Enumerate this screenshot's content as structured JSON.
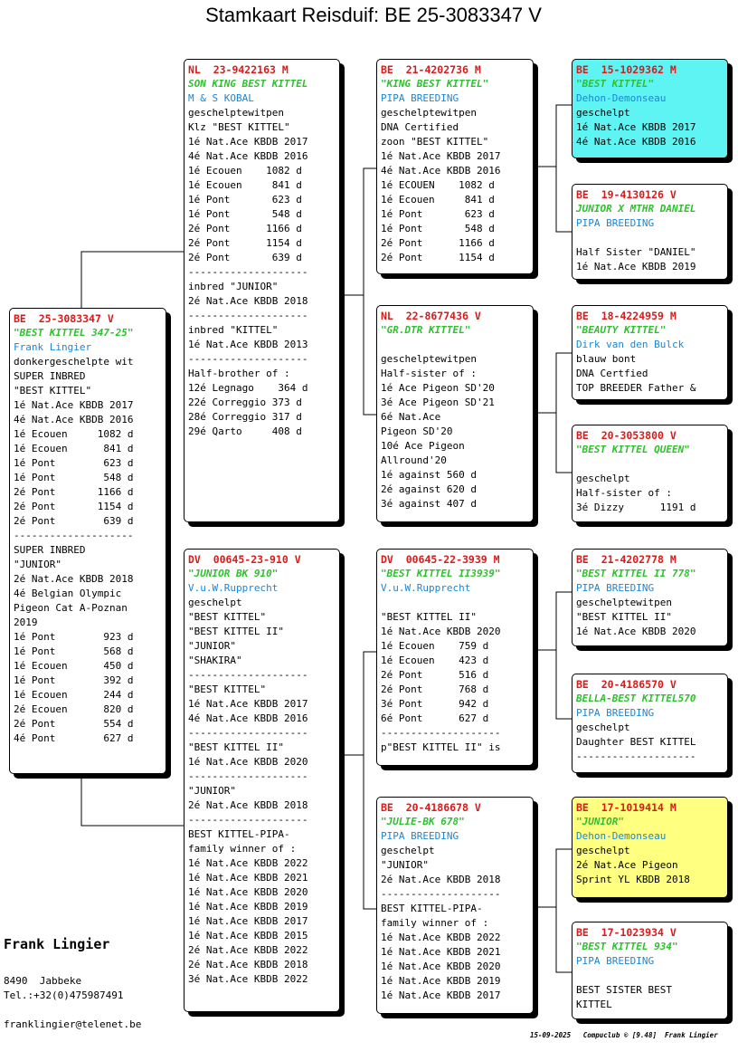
{
  "title": "Stamkaart Reisduif: BE  25-3083347 V",
  "owner": {
    "name": "Frank Lingier",
    "address": "8490  Jabbeke",
    "phone": "Tel.:+32(0)475987491",
    "email": "franklingier@telenet.be"
  },
  "footer": "15-09-2025   Compuclub © [9.48]  Frank Lingier",
  "cards": {
    "subject": {
      "ring": "BE  25-3083347 V",
      "name": "\"BEST KITTEL 347-25\"",
      "owner": "Frank Lingier",
      "lines": [
        "donkergeschelpte wit",
        "SUPER INBRED",
        "\"BEST KITTEL\"",
        "1é Nat.Ace KBDB 2017",
        "4é Nat.Ace KBDB 2016",
        "1é Ecouen     1082 d",
        "1é Ecouen      841 d",
        "1é Pont        623 d",
        "1é Pont        548 d",
        "2é Pont       1166 d",
        "2é Pont       1154 d",
        "2é Pont        639 d",
        "--------------------",
        "SUPER INBRED",
        "\"JUNIOR\"",
        "2é Nat.Ace KBDB 2018",
        "4é Belgian Olympic",
        "Pigeon Cat A-Poznan",
        "2019",
        "1é Pont        923 d",
        "1é Pont        568 d",
        "1é Ecouen      450 d",
        "1é Pont        392 d",
        "1é Ecouen      244 d",
        "2é Ecouen      820 d",
        "2é Pont        554 d",
        "4é Pont        627 d"
      ]
    },
    "father": {
      "ring": "NL  23-9422163 M",
      "name": "SON KING BEST KITTEL",
      "owner": "M & S KOBAL",
      "lines": [
        "geschelptewitpen",
        "Klz \"BEST KITTEL\"",
        "1é Nat.Ace KBDB 2017",
        "4é Nat.Ace KBDB 2016",
        "1é Ecouen    1082 d",
        "1é Ecouen     841 d",
        "1é Pont       623 d",
        "1é Pont       548 d",
        "2é Pont      1166 d",
        "2é Pont      1154 d",
        "2é Pont       639 d",
        "--------------------",
        "inbred \"JUNIOR\"",
        "2é Nat.Ace KBDB 2018",
        "--------------------",
        "inbred \"KITTEL\"",
        "1é Nat.Ace KBDB 2013",
        "--------------------",
        "Half-brother of :",
        "12é Legnago    364 d",
        "22é Correggio 373 d",
        "28é Correggio 317 d",
        "29é Qarto     408 d"
      ]
    },
    "mother": {
      "ring": "DV  00645-23-910 V",
      "name": "\"JUNIOR BK 910\"",
      "owner": "V.u.W.Rupprecht",
      "lines": [
        "geschelpt",
        "\"BEST KITTEL\"",
        "\"BEST KITTEL II\"",
        "\"JUNIOR\"",
        "\"SHAKIRA\"",
        "--------------------",
        "\"BEST KITTEL\"",
        "1é Nat.Ace KBDB 2017",
        "4é Nat.Ace KBDB 2016",
        "--------------------",
        "\"BEST KITTEL II\"",
        "1é Nat.Ace KBDB 2020",
        "--------------------",
        "\"JUNIOR\"",
        "2é Nat.Ace KBDB 2018",
        "--------------------",
        "BEST KITTEL-PIPA-",
        "family winner of :",
        "1é Nat.Ace KBDB 2022",
        "1é Nat.Ace KBDB 2021",
        "1é Nat.Ace KBDB 2020",
        "1é Nat.Ace KBDB 2019",
        "1é Nat.Ace KBDB 2017",
        "1é Nat.Ace KBDB 2015",
        "2é Nat.Ace KBDB 2022",
        "2é Nat.Ace KBDB 2018",
        "3é Nat.Ace KBDB 2022"
      ]
    },
    "ff": {
      "ring": "BE  21-4202736 M",
      "name": "\"KING BEST KITTEL\"",
      "owner": "PIPA BREEDING",
      "lines": [
        "geschelptewitpen",
        "DNA Certified",
        "zoon \"BEST KITTEL\"",
        "1é Nat.Ace KBDB 2017",
        "4é Nat.Ace KBDB 2016",
        "1é ECOUEN    1082 d",
        "1é Ecouen     841 d",
        "1é Pont       623 d",
        "1é Pont       548 d",
        "2é Pont      1166 d",
        "2é Pont      1154 d"
      ]
    },
    "fm": {
      "ring": "NL  22-8677436 V",
      "name": "\"GR.DTR KITTEL\"",
      "owner": "",
      "lines": [
        "geschelptewitpen",
        "Half-sister of :",
        "1é Ace Pigeon SD'20",
        "3é Ace Pigeon SD'21",
        "6é Nat.Ace",
        "Pigeon SD'20",
        "10é Ace Pigeon",
        "Allround'20",
        "1é against 560 d",
        "2é against 620 d",
        "3é against 407 d"
      ]
    },
    "mf": {
      "ring": "DV  00645-22-3939 M",
      "name": "\"BEST KITTEL II3939\"",
      "owner": "V.u.W.Rupprecht",
      "lines": [
        "",
        "\"BEST KITTEL II\"",
        "1é Nat.Ace KBDB 2020",
        "1é Ecouen    759 d",
        "1é Ecouen    423 d",
        "2é Pont      516 d",
        "2é Pont      768 d",
        "3é Pont      942 d",
        "6é Pont      627 d",
        "--------------------",
        "p\"BEST KITTEL II\" is"
      ]
    },
    "mm": {
      "ring": "BE  20-4186678 V",
      "name": "\"JULIE-BK 678\"",
      "owner": "PIPA BREEDING",
      "lines": [
        "geschelpt",
        "\"JUNIOR\"",
        "2é Nat.Ace KBDB 2018",
        "--------------------",
        "BEST KITTEL-PIPA-",
        "family winner of :",
        "1é Nat.Ace KBDB 2022",
        "1é Nat.Ace KBDB 2021",
        "1é Nat.Ace KBDB 2020",
        "1é Nat.Ace KBDB 2019",
        "1é Nat.Ace KBDB 2017"
      ]
    },
    "fff": {
      "ring": "BE  15-1029362 M",
      "name": "\"BEST KITTEL\"",
      "owner": "Dehon-Demonseau",
      "lines": [
        "geschelpt",
        "1é Nat.Ace KBDB 2017",
        "4é Nat.Ace KBDB 2016"
      ]
    },
    "ffm": {
      "ring": "BE  19-4130126 V",
      "name": "JUNIOR X MTHR DANIEL",
      "owner": "PIPA BREEDING",
      "lines": [
        "",
        "Half Sister \"DANIEL\"",
        "1é Nat.Ace KBDB 2019"
      ]
    },
    "fmf": {
      "ring": "BE  18-4224959 M",
      "name": "\"BEAUTY KITTEL\"",
      "owner": "Dirk van den Bulck",
      "lines": [
        "blauw bont",
        "DNA Certfied",
        "TOP BREEDER Father &"
      ]
    },
    "fmm": {
      "ring": "BE  20-3053800 V",
      "name": "\"BEST KITTEL QUEEN\"",
      "owner": "",
      "lines": [
        "geschelpt",
        "Half-sister of :",
        "3é Dizzy      1191 d"
      ]
    },
    "mff": {
      "ring": "BE  21-4202778 M",
      "name": "\"BEST KITTEL II 778\"",
      "owner": "PIPA BREEDING",
      "lines": [
        "geschelptewitpen",
        "\"BEST KITTEL II\"",
        "1é Nat.Ace KBDB 2020"
      ]
    },
    "mfm": {
      "ring": "BE  20-4186570 V",
      "name": "BELLA-BEST KITTEL570",
      "owner": "PIPA BREEDING",
      "lines": [
        "geschelpt",
        "Daughter BEST KITTEL",
        "--------------------"
      ]
    },
    "mmf": {
      "ring": "BE  17-1019414 M",
      "name": "\"JUNIOR\"",
      "owner": "Dehon-Demonseau",
      "lines": [
        "geschelpt",
        "2é Nat.Ace Pigeon",
        "Sprint YL KBDB 2018"
      ]
    },
    "mmm": {
      "ring": "BE  17-1023934 V",
      "name": "\"BEST KITTEL 934\"",
      "owner": "PIPA BREEDING",
      "lines": [
        "",
        "BEST SISTER BEST",
        "KITTEL"
      ]
    }
  }
}
